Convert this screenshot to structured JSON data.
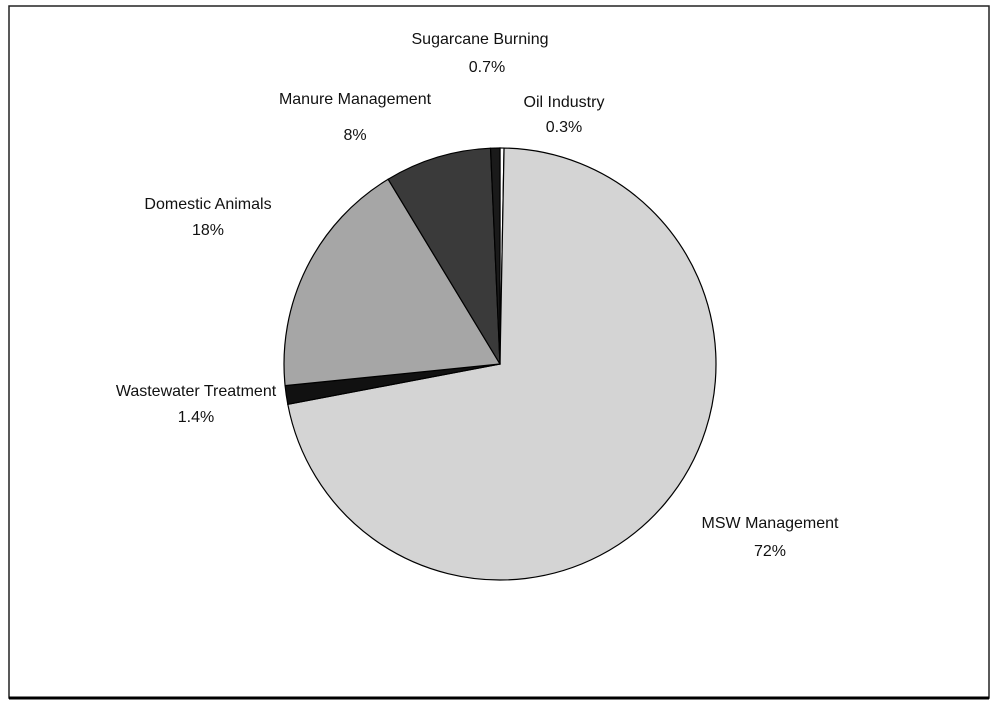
{
  "chart_data": {
    "type": "pie",
    "categories": [
      "Oil Industry",
      "MSW Management",
      "Wastewater Treatment",
      "Domestic Animals",
      "Manure Management",
      "Sugarcane Burning"
    ],
    "values": [
      0.3,
      72,
      1.4,
      18,
      8,
      0.7
    ],
    "value_labels": [
      "0.3%",
      "72%",
      "1.4%",
      "18%",
      "8%",
      "0.7%"
    ],
    "colors": [
      "#ffffff",
      "#d4d4d4",
      "#111111",
      "#a6a6a6",
      "#3a3a3a",
      "#1a1a1a"
    ]
  }
}
